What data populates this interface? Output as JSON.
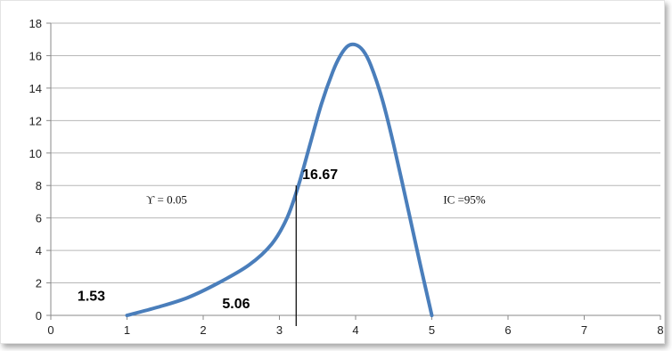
{
  "chart_data": {
    "type": "line",
    "title": "",
    "xlabel": "",
    "ylabel": "",
    "xlim": [
      0,
      8
    ],
    "ylim": [
      0,
      18
    ],
    "xticks": [
      0,
      1,
      2,
      3,
      4,
      5,
      6,
      7,
      8
    ],
    "yticks": [
      0,
      2,
      4,
      6,
      8,
      10,
      12,
      14,
      16,
      18
    ],
    "grid": "horizontal",
    "legend": "none",
    "series": [
      {
        "color": "#4a7ebb",
        "x": [
          1.0,
          1.4,
          1.8,
          2.2,
          2.6,
          2.9,
          3.1,
          3.25,
          3.4,
          3.55,
          3.7,
          3.8,
          3.9,
          4.0,
          4.1,
          4.2,
          4.35,
          4.5,
          4.7,
          4.85,
          5.0
        ],
        "y": [
          0.0,
          0.5,
          1.1,
          2.0,
          3.1,
          4.4,
          6.0,
          8.0,
          10.5,
          13.0,
          15.0,
          16.0,
          16.6,
          16.67,
          16.3,
          15.4,
          13.3,
          10.5,
          6.3,
          3.1,
          0.0
        ]
      }
    ],
    "vline": {
      "x": 3.22,
      "y_top": 8.0
    },
    "annotations": [
      {
        "text": "1.53",
        "x": 0.35,
        "y": 0.9,
        "style": "bold"
      },
      {
        "text": "5.06",
        "x": 2.25,
        "y": 0.45,
        "style": "bold"
      },
      {
        "text": "16.67",
        "x": 3.3,
        "y": 8.4,
        "style": "bold"
      },
      {
        "text": "ϒ = 0.05",
        "x": 1.25,
        "y": 6.9,
        "style": "serif"
      },
      {
        "text": "IC =95%",
        "x": 5.15,
        "y": 6.9,
        "style": "serif"
      }
    ]
  }
}
